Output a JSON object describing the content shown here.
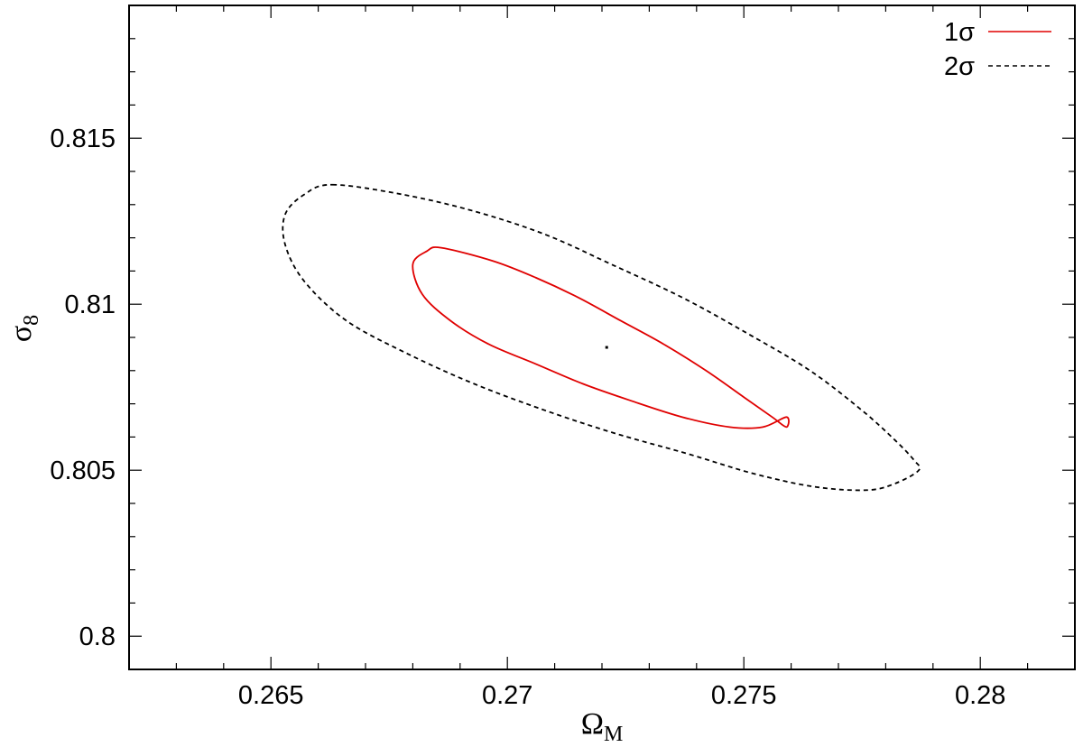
{
  "chart_data": {
    "type": "line",
    "title": "",
    "xlabel": "Ω",
    "xlabel_sub": "M",
    "ylabel": "σ",
    "ylabel_sub": "8",
    "xlim": [
      0.262,
      0.282
    ],
    "ylim": [
      0.799,
      0.819
    ],
    "xticks": [
      0.265,
      0.27,
      0.275,
      0.28
    ],
    "xtick_labels": [
      "0.265",
      "0.27",
      "0.275",
      "0.28"
    ],
    "yticks": [
      0.8,
      0.805,
      0.81,
      0.815
    ],
    "ytick_labels": [
      "0.8",
      "0.805",
      "0.81",
      "0.815"
    ],
    "grid": false,
    "legend_position": "top-right",
    "best_fit": {
      "x": 0.2721,
      "y": 0.8087
    },
    "series": [
      {
        "name": "1σ",
        "color": "#e00000",
        "style": "solid",
        "x": [
          0.2686,
          0.2697,
          0.2706,
          0.2715,
          0.2724,
          0.2733,
          0.2742,
          0.275,
          0.2756,
          0.2759,
          0.2759,
          0.2754,
          0.2747,
          0.2737,
          0.2726,
          0.2716,
          0.2706,
          0.2696,
          0.2688,
          0.2682,
          0.268,
          0.2683
        ],
        "y": [
          0.8117,
          0.8113,
          0.8108,
          0.8102,
          0.8095,
          0.8088,
          0.808,
          0.8072,
          0.8066,
          0.8063,
          0.8066,
          0.8063,
          0.8063,
          0.8066,
          0.8071,
          0.8076,
          0.8082,
          0.8088,
          0.8095,
          0.8103,
          0.8112,
          0.8116
        ]
      },
      {
        "name": "2σ",
        "color": "#000000",
        "style": "dashed",
        "x": [
          0.2663,
          0.2678,
          0.2693,
          0.2708,
          0.2722,
          0.2737,
          0.2751,
          0.2764,
          0.2775,
          0.2782,
          0.2786,
          0.2787,
          0.2782,
          0.2776,
          0.2765,
          0.2752,
          0.2738,
          0.2723,
          0.2708,
          0.2693,
          0.2679,
          0.2666,
          0.2657,
          0.2653,
          0.2653,
          0.2657
        ],
        "y": [
          0.8136,
          0.8133,
          0.8128,
          0.8121,
          0.8112,
          0.8102,
          0.8091,
          0.808,
          0.8068,
          0.8059,
          0.8053,
          0.805,
          0.8046,
          0.8044,
          0.8045,
          0.8049,
          0.8055,
          0.8061,
          0.8068,
          0.8076,
          0.8085,
          0.8095,
          0.8107,
          0.8118,
          0.8127,
          0.8133
        ]
      }
    ]
  }
}
